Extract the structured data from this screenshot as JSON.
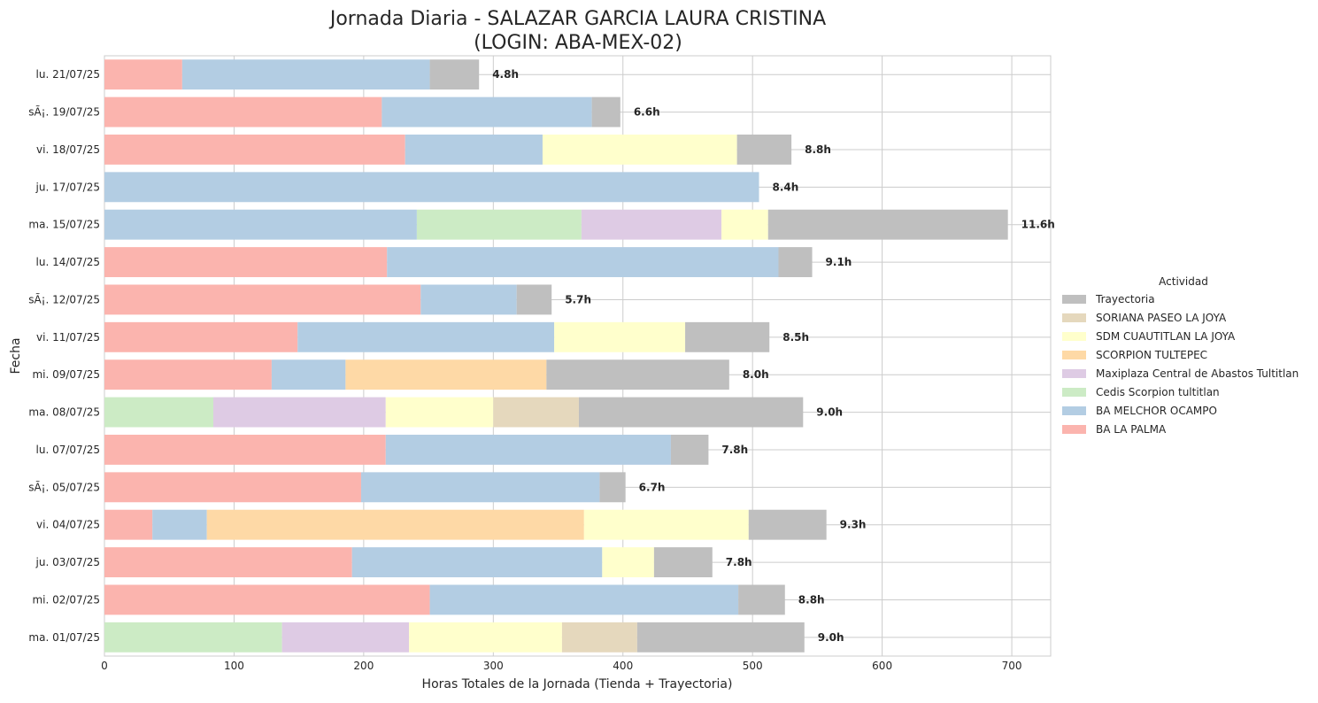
{
  "chart_data": {
    "type": "bar",
    "orientation": "horizontal",
    "stacked": true,
    "title_line1": "Jornada Diaria - SALAZAR GARCIA LAURA CRISTINA",
    "title_line2": "(LOGIN: ABA-MEX-02)",
    "xlabel": "Horas Totales de la Jornada (Tienda + Trayectoria)",
    "ylabel": "Fecha",
    "xlim": [
      0,
      730
    ],
    "xticks": [
      0,
      100,
      200,
      300,
      400,
      500,
      600,
      700
    ],
    "grid": true,
    "legend": {
      "title": "Actividad",
      "placement": "right",
      "entries": [
        "Trayectoria",
        "SORIANA PASEO LA JOYA",
        "SDM CUAUTITLAN LA JOYA",
        "SCORPION TULTEPEC",
        "Maxiplaza Central de Abastos Tultitlan",
        "Cedis Scorpion tultitlan",
        "BA MELCHOR OCAMPO",
        "BA LA PALMA"
      ]
    },
    "colors": {
      "BA LA PALMA": "#fbb4ae",
      "BA MELCHOR OCAMPO": "#b3cde3",
      "Cedis Scorpion tultitlan": "#ccebc5",
      "Maxiplaza Central de Abastos Tultitlan": "#decbe4",
      "SCORPION TULTEPEC": "#fed9a6",
      "SDM CUAUTITLAN LA JOYA": "#ffffcc",
      "SORIANA PASEO LA JOYA": "#e5d8bd",
      "Trayectoria": "#bfbfbf"
    },
    "categories": [
      "lu. 21/07/25",
      "sÃ¡. 19/07/25",
      "vi. 18/07/25",
      "ju. 17/07/25",
      "ma. 15/07/25",
      "lu. 14/07/25",
      "sÃ¡. 12/07/25",
      "vi. 11/07/25",
      "mi. 09/07/25",
      "ma. 08/07/25",
      "lu. 07/07/25",
      "sÃ¡. 05/07/25",
      "vi. 04/07/25",
      "ju. 03/07/25",
      "mi. 02/07/25",
      "ma. 01/07/25"
    ],
    "total_labels": [
      "4.8h",
      "6.6h",
      "8.8h",
      "8.4h",
      "11.6h",
      "9.1h",
      "5.7h",
      "8.5h",
      "8.0h",
      "9.0h",
      "7.8h",
      "6.7h",
      "9.3h",
      "7.8h",
      "8.8h",
      "9.0h"
    ],
    "series": [
      {
        "name": "BA LA PALMA",
        "values": [
          60,
          214,
          232,
          0,
          0,
          218,
          244,
          149,
          129,
          0,
          217,
          198,
          37,
          191,
          251,
          0
        ]
      },
      {
        "name": "BA MELCHOR OCAMPO",
        "values": [
          191,
          162,
          106,
          505,
          241,
          302,
          74,
          198,
          57,
          0,
          220,
          184,
          42,
          193,
          238,
          0
        ]
      },
      {
        "name": "Cedis Scorpion tultitlan",
        "values": [
          0,
          0,
          0,
          0,
          127,
          0,
          0,
          0,
          0,
          84,
          0,
          0,
          0,
          0,
          0,
          137
        ]
      },
      {
        "name": "Maxiplaza Central de Abastos Tultitlan",
        "values": [
          0,
          0,
          0,
          0,
          108,
          0,
          0,
          0,
          0,
          133,
          0,
          0,
          0,
          0,
          0,
          98
        ]
      },
      {
        "name": "SCORPION TULTEPEC",
        "values": [
          0,
          0,
          0,
          0,
          0,
          0,
          0,
          0,
          155,
          0,
          0,
          0,
          291,
          0,
          0,
          0
        ]
      },
      {
        "name": "SDM CUAUTITLAN LA JOYA",
        "values": [
          0,
          0,
          150,
          0,
          36,
          0,
          0,
          101,
          0,
          83,
          0,
          0,
          127,
          40,
          0,
          118
        ]
      },
      {
        "name": "SORIANA PASEO LA JOYA",
        "values": [
          0,
          0,
          0,
          0,
          0,
          0,
          0,
          0,
          0,
          66,
          0,
          0,
          0,
          0,
          0,
          58
        ]
      },
      {
        "name": "Trayectoria",
        "values": [
          38,
          22,
          42,
          0,
          185,
          26,
          27,
          65,
          141,
          173,
          29,
          20,
          60,
          45,
          36,
          129
        ]
      }
    ]
  }
}
